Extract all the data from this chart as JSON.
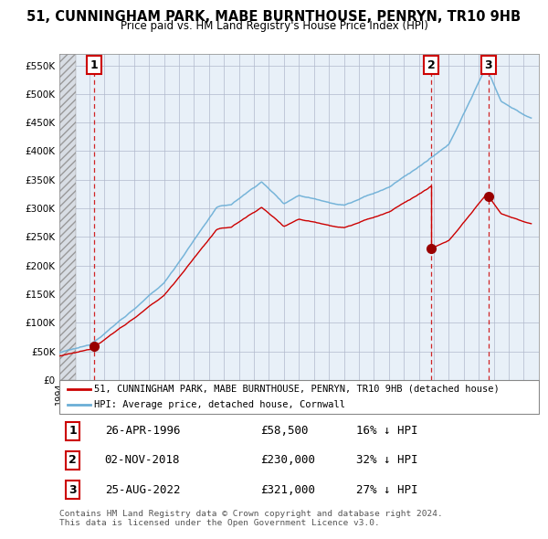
{
  "title": "51, CUNNINGHAM PARK, MABE BURNTHOUSE, PENRYN, TR10 9HB",
  "subtitle": "Price paid vs. HM Land Registry's House Price Index (HPI)",
  "hpi_label": "HPI: Average price, detached house, Cornwall",
  "property_label": "51, CUNNINGHAM PARK, MABE BURNTHOUSE, PENRYN, TR10 9HB (detached house)",
  "ylim": [
    0,
    570000
  ],
  "yticks": [
    0,
    50000,
    100000,
    150000,
    200000,
    250000,
    300000,
    350000,
    400000,
    450000,
    500000,
    550000
  ],
  "ytick_labels": [
    "£0",
    "£50K",
    "£100K",
    "£150K",
    "£200K",
    "£250K",
    "£300K",
    "£350K",
    "£400K",
    "£450K",
    "£500K",
    "£550K"
  ],
  "xlim_start": 1994,
  "xlim_end": 2026,
  "hpi_color": "#6aaed6",
  "property_color": "#cc0000",
  "annotation_box_color": "#cc0000",
  "dashed_line_color": "#cc0000",
  "chart_bg_color": "#e8f0f8",
  "hatch_color": "#c0c8d0",
  "grid_color": "#aaaacc",
  "transactions": [
    {
      "num": 1,
      "date": "26-APR-1996",
      "year": 1996.32,
      "price": 58500,
      "pct": "16%",
      "direction": "↓"
    },
    {
      "num": 2,
      "date": "02-NOV-2018",
      "year": 2018.83,
      "price": 230000,
      "pct": "32%",
      "direction": "↓"
    },
    {
      "num": 3,
      "date": "25-AUG-2022",
      "year": 2022.65,
      "price": 321000,
      "pct": "27%",
      "direction": "↓"
    }
  ],
  "footer": "Contains HM Land Registry data © Crown copyright and database right 2024.\nThis data is licensed under the Open Government Licence v3.0."
}
